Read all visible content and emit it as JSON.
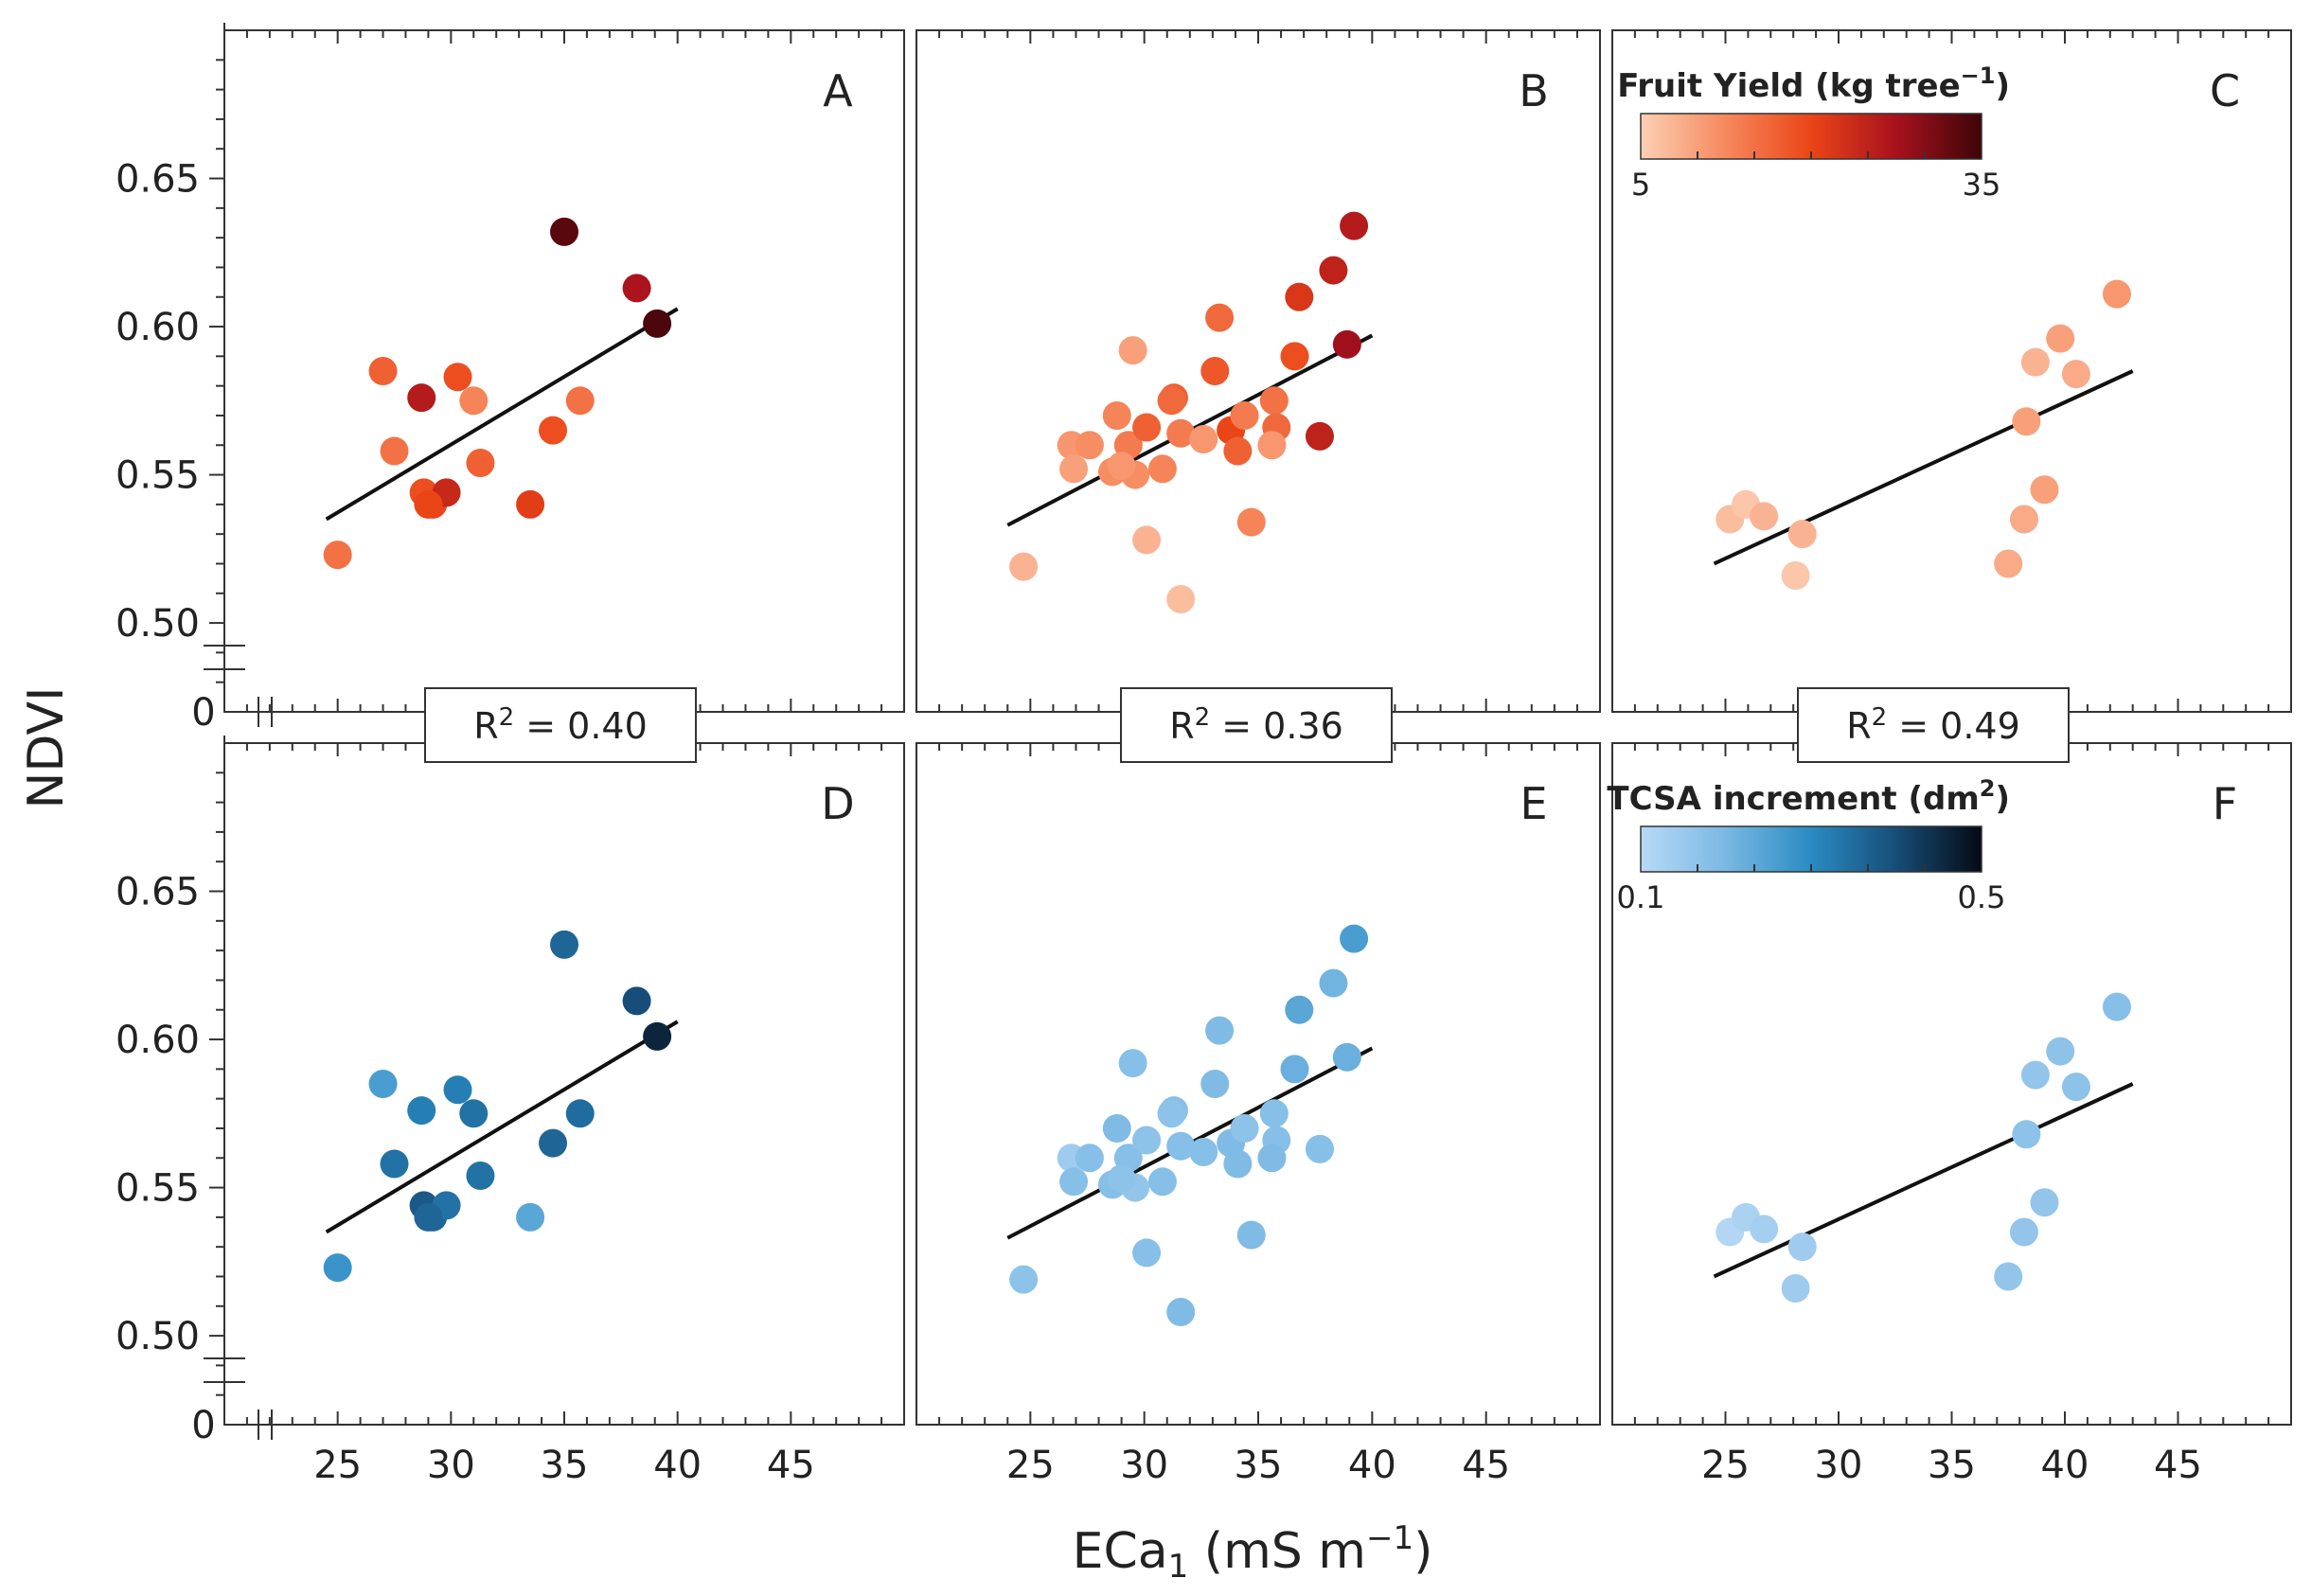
{
  "chart_data": {
    "type": "scatter",
    "ylabel": "NDVI",
    "xlabel": {
      "main": "ECa",
      "sub": "1",
      "unit_pre": " (mS m",
      "unit_sup": "−1",
      "unit_post": ")"
    },
    "x_range": [
      20,
      50
    ],
    "y_range": [
      0.47,
      0.7
    ],
    "x_ticks": [
      25,
      30,
      35,
      40,
      45
    ],
    "y_ticks": [
      0.5,
      0.55,
      0.6,
      0.65
    ],
    "x_tick_labels": [
      "25",
      "30",
      "35",
      "40",
      "45"
    ],
    "y_tick_labels": [
      "0.50",
      "0.55",
      "0.60",
      "0.65"
    ],
    "axis_break_label": "0",
    "r2_labels": [
      {
        "base": "R",
        "sup": "2",
        "value": " = 0.40"
      },
      {
        "base": "R",
        "sup": "2",
        "value": " = 0.36"
      },
      {
        "base": "R",
        "sup": "2",
        "value": " = 0.49"
      }
    ],
    "colorbars": [
      {
        "title": "Fruit Yield (kg tree",
        "title_sup": "−1",
        "title_end": ")",
        "min": 5,
        "max": 35,
        "min_label": "5",
        "max_label": "35",
        "colors": [
          "#fcd0b5",
          "#f6885d",
          "#ea4517",
          "#a7111d",
          "#3d0508"
        ]
      },
      {
        "title": "TCSA increment (dm",
        "title_sup": "2",
        "title_end": ")",
        "min": 0.1,
        "max": 0.5,
        "min_label": "0.1",
        "max_label": "0.5",
        "colors": [
          "#b8d9f6",
          "#7ab8e3",
          "#2a8bc3",
          "#174d78",
          "#050a14"
        ]
      }
    ],
    "panels": [
      {
        "label": "A",
        "cmap": 0,
        "fit": {
          "x": [
            24.5,
            40
          ],
          "y": [
            0.535,
            0.606
          ]
        },
        "points": [
          [
            25,
            0.523,
            15
          ],
          [
            27,
            0.585,
            17
          ],
          [
            27.5,
            0.558,
            15
          ],
          [
            28.7,
            0.576,
            26
          ],
          [
            28.8,
            0.544,
            19
          ],
          [
            29.2,
            0.54,
            20
          ],
          [
            29.8,
            0.544,
            24
          ],
          [
            30.3,
            0.583,
            19
          ],
          [
            31,
            0.575,
            13
          ],
          [
            31.3,
            0.554,
            17
          ],
          [
            33.5,
            0.54,
            21
          ],
          [
            34.5,
            0.565,
            19
          ],
          [
            35.7,
            0.575,
            15
          ],
          [
            35,
            0.632,
            33
          ],
          [
            38.2,
            0.613,
            27
          ],
          [
            39.1,
            0.601,
            34
          ],
          [
            29,
            0.54,
            20
          ]
        ]
      },
      {
        "label": "B",
        "cmap": 0,
        "fit": {
          "x": [
            24,
            40
          ],
          "y": [
            0.533,
            0.597
          ]
        },
        "points": [
          [
            24.7,
            0.519,
            8
          ],
          [
            26.8,
            0.56,
            11
          ],
          [
            26.9,
            0.552,
            10
          ],
          [
            27.6,
            0.56,
            12
          ],
          [
            28.6,
            0.551,
            12
          ],
          [
            28.8,
            0.57,
            13
          ],
          [
            29.3,
            0.56,
            14
          ],
          [
            29.5,
            0.592,
            10
          ],
          [
            29.6,
            0.55,
            12
          ],
          [
            30.1,
            0.566,
            17
          ],
          [
            30.1,
            0.528,
            8
          ],
          [
            30.8,
            0.552,
            13
          ],
          [
            31.3,
            0.576,
            17
          ],
          [
            31.6,
            0.564,
            14
          ],
          [
            31.6,
            0.508,
            7
          ],
          [
            32.6,
            0.562,
            11
          ],
          [
            33.1,
            0.585,
            18
          ],
          [
            33.3,
            0.603,
            16
          ],
          [
            33.8,
            0.565,
            20
          ],
          [
            34.1,
            0.558,
            17
          ],
          [
            34.7,
            0.534,
            13
          ],
          [
            34.4,
            0.57,
            14
          ],
          [
            35.7,
            0.575,
            15
          ],
          [
            35.8,
            0.566,
            16
          ],
          [
            35.6,
            0.56,
            11
          ],
          [
            36.6,
            0.59,
            19
          ],
          [
            36.8,
            0.61,
            22
          ],
          [
            37.7,
            0.563,
            25
          ],
          [
            38.3,
            0.619,
            25
          ],
          [
            38.9,
            0.594,
            28
          ],
          [
            39.2,
            0.634,
            26
          ],
          [
            31.2,
            0.575,
            16
          ],
          [
            29.0,
            0.553,
            11
          ]
        ]
      },
      {
        "label": "C",
        "cmap": 0,
        "colorbar": 0,
        "fit": {
          "x": [
            24.5,
            43
          ],
          "y": [
            0.52,
            0.585
          ]
        },
        "points": [
          [
            25.2,
            0.535,
            7
          ],
          [
            25.9,
            0.54,
            6
          ],
          [
            26.7,
            0.536,
            8
          ],
          [
            28.1,
            0.516,
            6
          ],
          [
            28.4,
            0.53,
            8
          ],
          [
            37.5,
            0.52,
            9
          ],
          [
            38.2,
            0.535,
            9
          ],
          [
            38.3,
            0.568,
            10
          ],
          [
            38.7,
            0.588,
            8
          ],
          [
            39.1,
            0.545,
            10
          ],
          [
            39.8,
            0.596,
            10
          ],
          [
            40.5,
            0.584,
            9
          ],
          [
            42.3,
            0.611,
            11
          ]
        ]
      },
      {
        "label": "D",
        "cmap": 1,
        "fit": {
          "x": [
            24.5,
            40
          ],
          "y": [
            0.535,
            0.606
          ]
        },
        "points": [
          [
            25,
            0.523,
            0.28
          ],
          [
            27,
            0.585,
            0.26
          ],
          [
            27.5,
            0.558,
            0.34
          ],
          [
            28.7,
            0.576,
            0.32
          ],
          [
            28.8,
            0.544,
            0.38
          ],
          [
            29.2,
            0.54,
            0.36
          ],
          [
            29.8,
            0.544,
            0.34
          ],
          [
            30.3,
            0.583,
            0.32
          ],
          [
            31,
            0.575,
            0.34
          ],
          [
            31.3,
            0.554,
            0.34
          ],
          [
            33.5,
            0.54,
            0.24
          ],
          [
            34.5,
            0.565,
            0.36
          ],
          [
            35.7,
            0.575,
            0.35
          ],
          [
            35,
            0.632,
            0.36
          ],
          [
            38.2,
            0.613,
            0.4
          ],
          [
            39.1,
            0.601,
            0.46
          ],
          [
            29,
            0.54,
            0.36
          ]
        ]
      },
      {
        "label": "E",
        "cmap": 1,
        "fit": {
          "x": [
            24,
            40
          ],
          "y": [
            0.533,
            0.597
          ]
        },
        "points": [
          [
            24.7,
            0.519,
            0.17
          ],
          [
            26.8,
            0.56,
            0.14
          ],
          [
            26.9,
            0.552,
            0.18
          ],
          [
            27.6,
            0.56,
            0.18
          ],
          [
            28.6,
            0.551,
            0.18
          ],
          [
            28.8,
            0.57,
            0.19
          ],
          [
            29.3,
            0.56,
            0.18
          ],
          [
            29.5,
            0.592,
            0.18
          ],
          [
            29.6,
            0.55,
            0.16
          ],
          [
            30.1,
            0.566,
            0.17
          ],
          [
            30.1,
            0.528,
            0.18
          ],
          [
            30.8,
            0.552,
            0.18
          ],
          [
            31.3,
            0.576,
            0.18
          ],
          [
            31.6,
            0.564,
            0.18
          ],
          [
            31.6,
            0.508,
            0.19
          ],
          [
            32.6,
            0.562,
            0.18
          ],
          [
            33.1,
            0.585,
            0.19
          ],
          [
            33.3,
            0.603,
            0.19
          ],
          [
            33.8,
            0.565,
            0.19
          ],
          [
            34.1,
            0.558,
            0.19
          ],
          [
            34.7,
            0.534,
            0.19
          ],
          [
            34.4,
            0.57,
            0.17
          ],
          [
            35.7,
            0.575,
            0.18
          ],
          [
            35.8,
            0.566,
            0.18
          ],
          [
            35.6,
            0.56,
            0.19
          ],
          [
            36.6,
            0.59,
            0.22
          ],
          [
            36.8,
            0.61,
            0.24
          ],
          [
            37.7,
            0.563,
            0.18
          ],
          [
            38.3,
            0.619,
            0.21
          ],
          [
            38.9,
            0.594,
            0.22
          ],
          [
            39.2,
            0.634,
            0.26
          ],
          [
            31.2,
            0.575,
            0.17
          ],
          [
            29.0,
            0.553,
            0.17
          ]
        ]
      },
      {
        "label": "F",
        "cmap": 1,
        "colorbar": 1,
        "fit": {
          "x": [
            24.5,
            43
          ],
          "y": [
            0.52,
            0.585
          ]
        },
        "points": [
          [
            25.2,
            0.535,
            0.11
          ],
          [
            25.9,
            0.54,
            0.12
          ],
          [
            26.7,
            0.536,
            0.13
          ],
          [
            28.1,
            0.516,
            0.14
          ],
          [
            28.4,
            0.53,
            0.14
          ],
          [
            37.5,
            0.52,
            0.16
          ],
          [
            38.2,
            0.535,
            0.16
          ],
          [
            38.3,
            0.568,
            0.17
          ],
          [
            38.7,
            0.588,
            0.16
          ],
          [
            39.1,
            0.545,
            0.16
          ],
          [
            39.8,
            0.596,
            0.17
          ],
          [
            40.5,
            0.584,
            0.17
          ],
          [
            42.3,
            0.611,
            0.18
          ]
        ]
      }
    ]
  }
}
